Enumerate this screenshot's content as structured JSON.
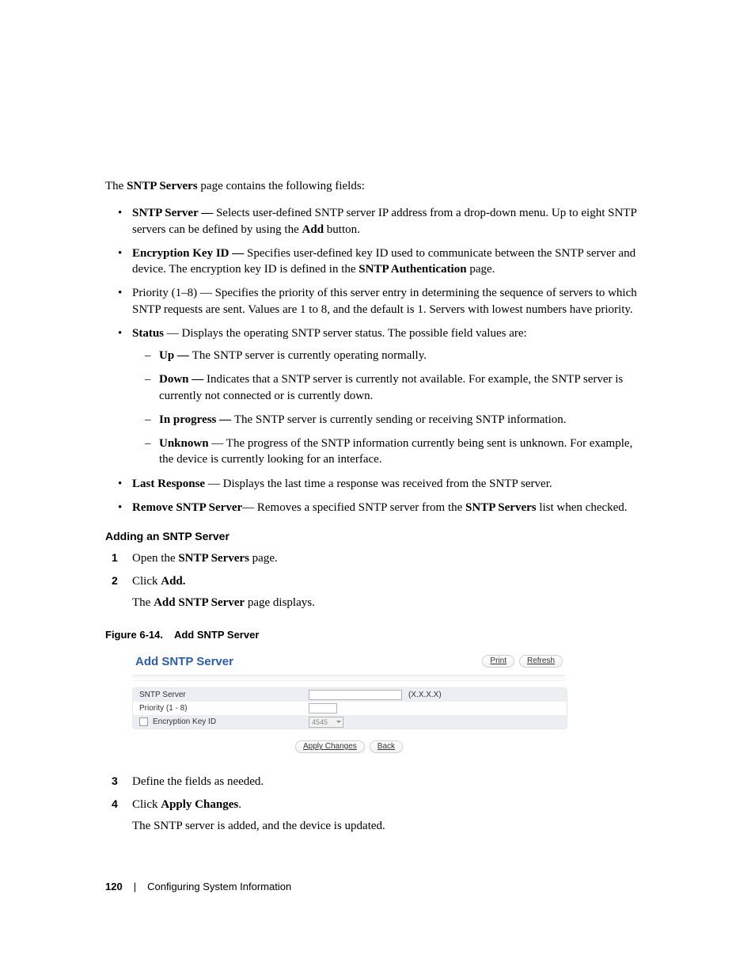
{
  "intro": {
    "pre": "The ",
    "bold": "SNTP Servers",
    "post": " page contains the following fields:"
  },
  "bullets": [
    {
      "bold": "SNTP Server — ",
      "text": "Selects user-defined SNTP server IP address from a drop-down menu. Up to eight SNTP servers can be defined by using the ",
      "bold2": "Add",
      "text2": " button."
    },
    {
      "bold": "Encryption Key ID — ",
      "text": "Specifies user-defined key ID used to communicate between the SNTP server and device. The encryption key ID is defined in the ",
      "bold2": "SNTP Authentication",
      "text2": " page."
    },
    {
      "text": "Priority (1–8) — Specifies the priority of this server entry in determining the sequence of servers to which SNTP requests are sent. Values are 1 to 8, and the default is 1. Servers with lowest numbers have priority."
    },
    {
      "bold": "Status",
      "text": " — Displays the operating SNTP server status. The possible field values are:",
      "sub": [
        {
          "bold": "Up — ",
          "text": "The SNTP server is currently operating normally."
        },
        {
          "bold": "Down — ",
          "text": "Indicates that a SNTP server is currently not available. For example, the SNTP server is currently not connected or is currently down."
        },
        {
          "bold": "In progress — ",
          "text": "The SNTP server is currently sending or receiving SNTP information."
        },
        {
          "bold": "Unknown",
          "text": " — The progress of the SNTP information currently being sent is unknown. For example, the device is currently looking for an interface."
        }
      ]
    },
    {
      "bold": "Last Response",
      "text": " — Displays the last time a response was received from the SNTP server."
    },
    {
      "bold": "Remove SNTP Server",
      "text": "— Removes a specified SNTP server from the ",
      "bold2": "SNTP Servers",
      "text2": " list when checked."
    }
  ],
  "section_heading": "Adding an SNTP Server",
  "steps_a": [
    {
      "pre": "Open the ",
      "bold": "SNTP Servers",
      "post": " page."
    },
    {
      "pre": "Click ",
      "bold": "Add.",
      "post": "",
      "sub_pre": "The ",
      "sub_bold": "Add SNTP Server",
      "sub_post": " page displays."
    }
  ],
  "figure_caption": {
    "label": "Figure 6-14.",
    "title": "Add SNTP Server"
  },
  "figure": {
    "title": "Add SNTP Server",
    "buttons": {
      "print": "Print",
      "refresh": "Refresh"
    },
    "rows": {
      "r1_label": "SNTP Server",
      "r1_hint": "(X.X.X.X)",
      "r2_label": "Priority (1 - 8)",
      "r3_label": "Encryption Key ID",
      "r3_value": "4545"
    },
    "bottom": {
      "apply": "Apply Changes",
      "back": "Back"
    }
  },
  "steps_b": [
    {
      "text": "Define the fields as needed."
    },
    {
      "pre": "Click ",
      "bold": "Apply Changes",
      "post": ".",
      "sub": "The SNTP server is added, and the device is updated."
    }
  ],
  "footer": {
    "page": "120",
    "section": "Configuring System Information"
  }
}
